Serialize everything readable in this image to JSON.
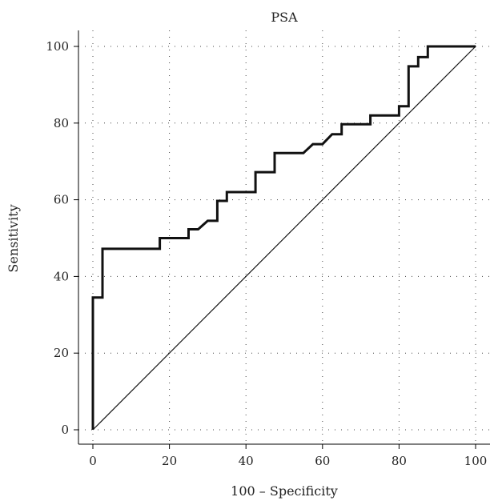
{
  "chart_data": {
    "type": "line",
    "title": "PSA",
    "xlabel": "100 – Specificity",
    "ylabel": "Sensitivity",
    "xlim": [
      0,
      100
    ],
    "ylim": [
      0,
      100
    ],
    "xticks": [
      0,
      20,
      40,
      60,
      80,
      100
    ],
    "yticks": [
      0,
      20,
      40,
      60,
      80,
      100
    ],
    "grid": true,
    "series": [
      {
        "role": "roc-curve",
        "points": [
          [
            0,
            0
          ],
          [
            0,
            34.5
          ],
          [
            2.5,
            34.5
          ],
          [
            2.5,
            47.2
          ],
          [
            17.5,
            47.2
          ],
          [
            17.5,
            50
          ],
          [
            25,
            50
          ],
          [
            25,
            52.3
          ],
          [
            27.5,
            52.3
          ],
          [
            30,
            54.5
          ],
          [
            32.5,
            54.5
          ],
          [
            32.5,
            59.7
          ],
          [
            35,
            59.7
          ],
          [
            35,
            62
          ],
          [
            42.5,
            62
          ],
          [
            42.5,
            67.2
          ],
          [
            47.5,
            67.2
          ],
          [
            47.5,
            72.2
          ],
          [
            55,
            72.2
          ],
          [
            57.5,
            74.5
          ],
          [
            60,
            74.5
          ],
          [
            62.5,
            77.1
          ],
          [
            65,
            77.1
          ],
          [
            65,
            79.7
          ],
          [
            72.5,
            79.7
          ],
          [
            72.5,
            82
          ],
          [
            80,
            82
          ],
          [
            80,
            84.4
          ],
          [
            82.5,
            84.4
          ],
          [
            82.5,
            94.8
          ],
          [
            85,
            94.8
          ],
          [
            85,
            97.2
          ],
          [
            87.5,
            97.2
          ],
          [
            87.5,
            100
          ],
          [
            100,
            100
          ]
        ]
      },
      {
        "role": "reference-line",
        "points": [
          [
            0,
            0
          ],
          [
            100,
            100
          ]
        ]
      }
    ]
  }
}
